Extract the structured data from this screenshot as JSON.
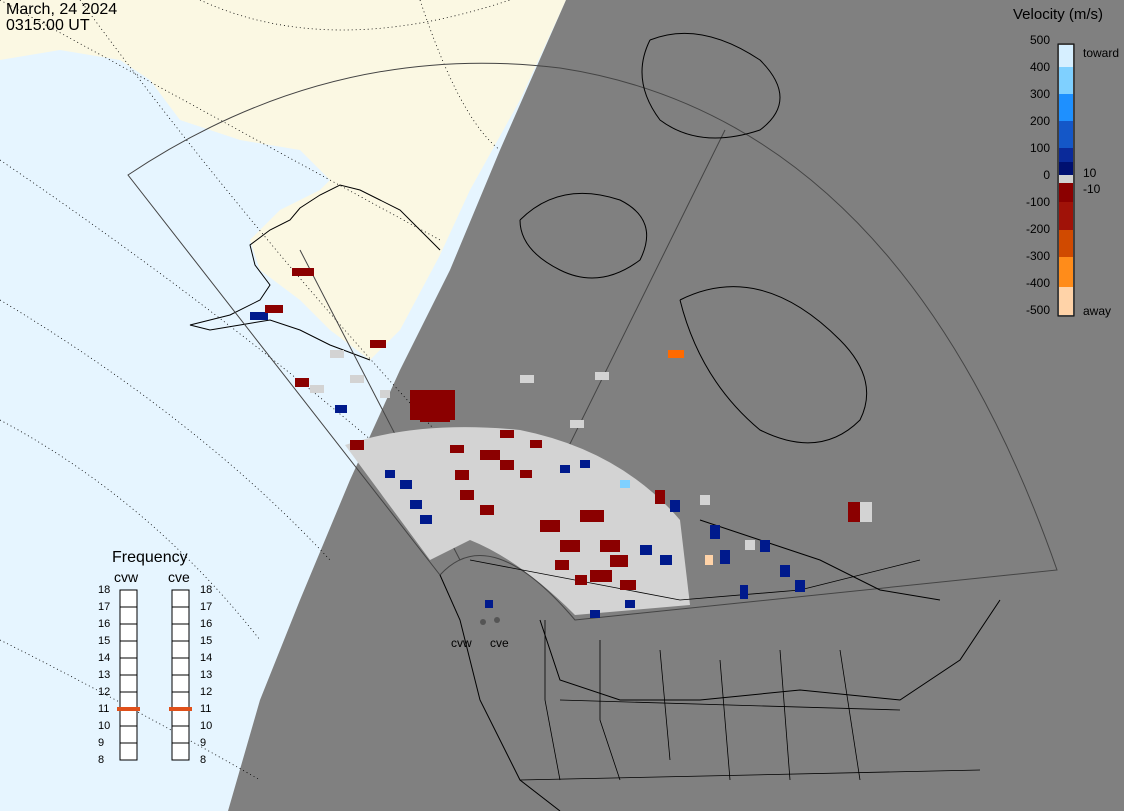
{
  "header": {
    "date": "March, 24 2024",
    "time": "0315:00 UT"
  },
  "velocity_legend": {
    "title": "Velocity (m/s)",
    "ticks": [
      "500",
      "400",
      "300",
      "200",
      "100",
      "0",
      "-100",
      "-200",
      "-300",
      "-400",
      "-500"
    ],
    "inner_ticks": [
      "10",
      "-10"
    ],
    "toward_label": "toward",
    "away_label": "away",
    "colors": [
      "#d6efff",
      "#7fd0ff",
      "#1e90ff",
      "#1457c8",
      "#0a2a9a",
      "#001070",
      "#8b0000",
      "#a01208",
      "#d04a00",
      "#ff8c1a",
      "#ffd3a8"
    ]
  },
  "frequency_panel": {
    "title": "Frequency",
    "radars": [
      {
        "name": "cvw",
        "selected_mhz": 11
      },
      {
        "name": "cve",
        "selected_mhz": 11
      }
    ],
    "scale": [
      "18",
      "17",
      "16",
      "15",
      "14",
      "13",
      "12",
      "11",
      "10",
      "9",
      "8"
    ],
    "marker_color": "#e0501a"
  },
  "radar_sites": [
    "cvw",
    "cve"
  ],
  "colors": {
    "ocean": "#e6f5ff",
    "land": "#fbf8e3",
    "night": "#808080",
    "scatter_gray": "#d3d3d3",
    "scatter_red": "#8b0000",
    "scatter_blue": "#001a8c",
    "scatter_orange": "#ff6a00"
  }
}
